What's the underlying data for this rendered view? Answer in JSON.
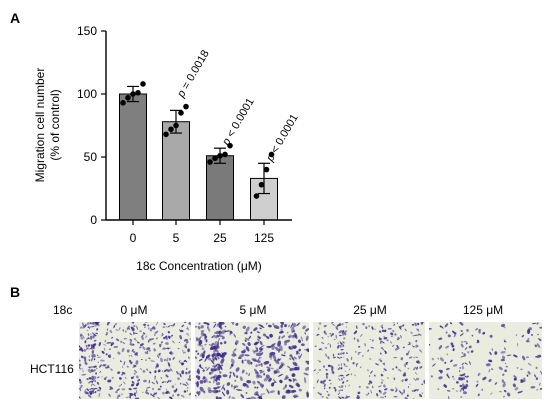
{
  "panel_a_label": "A",
  "panel_b_label": "B",
  "chart_data": {
    "type": "bar",
    "categories": [
      "0",
      "5",
      "25",
      "125"
    ],
    "values": [
      100,
      78,
      51,
      33
    ],
    "errors": [
      6,
      9,
      6,
      12
    ],
    "points": [
      [
        93,
        97,
        100,
        101,
        108
      ],
      [
        68,
        72,
        75,
        85,
        90
      ],
      [
        46,
        49,
        51,
        52,
        59
      ],
      [
        19,
        28,
        40,
        52
      ]
    ],
    "bar_colors": [
      "#7f7f7f",
      "#a9a9a9",
      "#7a7a7a",
      "#cfcfcf"
    ],
    "annotations": [
      "",
      "p = 0.0018",
      "p < 0.0001",
      "p < 0.0001"
    ],
    "xlabel": "18c Concentration (μM)",
    "ylabel_line1": "Migration cell number",
    "ylabel_line2": "(% of control)",
    "yticks": [
      0,
      50,
      100,
      150
    ],
    "ylim": [
      0,
      150
    ]
  },
  "panel_b": {
    "compound_label": "18c",
    "row_label": "HCT116",
    "columns": [
      "0 μM",
      "5 μM",
      "25 μM",
      "125 μM"
    ],
    "stain_color": "#3d2a8a",
    "background_color": "#e9ecde"
  }
}
